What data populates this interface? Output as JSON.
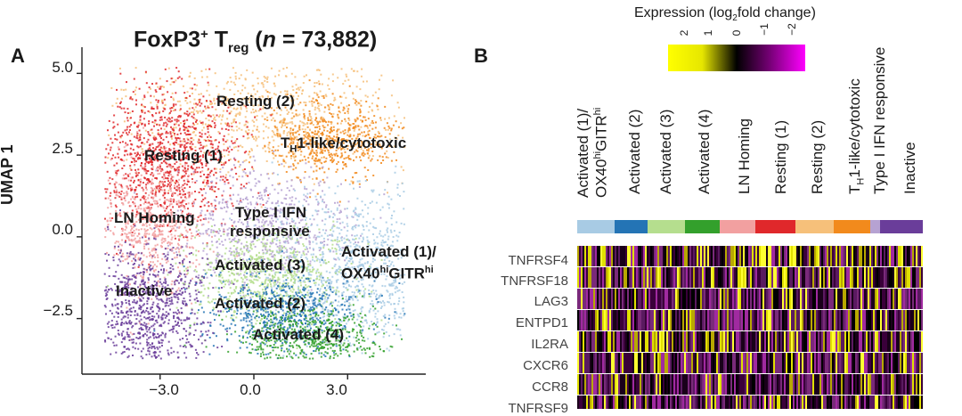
{
  "panel_a": {
    "letter": "A",
    "title_prefix": "FoxP3",
    "title_sup": "+",
    "title_mid": " T",
    "title_sub": "reg",
    "title_n_open": " (",
    "title_n": "n",
    "title_n_rest": " = 73,882)"
  },
  "panel_b": {
    "letter": "B"
  },
  "chart_data": {
    "type": "scatter",
    "title": "FoxP3+ Treg (n = 73,882)",
    "xlabel": "",
    "ylabel": "UMAP 1",
    "x_ticks": [
      "−3.0",
      "0.0",
      "3.0"
    ],
    "y_ticks": [
      "5.0",
      "2.5",
      "0.0",
      "−2.5"
    ],
    "xlim": [
      -5.5,
      5.5
    ],
    "ylim": [
      -4.2,
      5.8
    ],
    "clusters": [
      {
        "name": "Resting (2)",
        "color": "#f6c07a",
        "cx": 0.2,
        "cy": 3.8
      },
      {
        "name": "TH1-like/cytotoxic",
        "color": "#f28a1c",
        "cx": 2.4,
        "cy": 3.0
      },
      {
        "name": "Resting (1)",
        "color": "#e0282b",
        "cx": -2.8,
        "cy": 2.4
      },
      {
        "name": "LN Homing",
        "color": "#f2a0a0",
        "cx": -3.3,
        "cy": 0.4
      },
      {
        "name": "Type I IFN responsive",
        "color": "#b6a2d2",
        "cx": 0.3,
        "cy": 0.3
      },
      {
        "name": "Activated (1)/OX40hiGITRhi",
        "color": "#a8cbe4",
        "cx": 3.4,
        "cy": -1.0
      },
      {
        "name": "Activated (3)",
        "color": "#b5de8e",
        "cx": 0.4,
        "cy": -1.2
      },
      {
        "name": "Activated (2)",
        "color": "#2474b5",
        "cx": 0.8,
        "cy": -2.3
      },
      {
        "name": "Activated (4)",
        "color": "#33a02c",
        "cx": 1.7,
        "cy": -3.1
      },
      {
        "name": "Inactive",
        "color": "#6a3d9a",
        "cx": -3.4,
        "cy": -2.3
      }
    ]
  },
  "labels": {
    "resting2": "Resting (2)",
    "th1_t": "T",
    "th1_sub": "H",
    "th1_rest": "1-like/cytotoxic",
    "resting1": "Resting (1)",
    "ln_homing": "LN Homing",
    "type1_line1": "Type I IFN",
    "type1_line2": "responsive",
    "act1_line1": "Activated (1)/",
    "act1_ox": "OX40",
    "act1_hi1": "hi",
    "act1_gitr": "GITR",
    "act1_hi2": "hi",
    "act3": "Activated (3)",
    "inactive": "Inactive",
    "act2": "Activated (2)",
    "act4": "Activated (4)"
  },
  "legend": {
    "title_pre": "Expression (log",
    "title_sub": "2",
    "title_post": "fold change)",
    "ticks": [
      "2",
      "1",
      "0",
      "−1",
      "−2"
    ]
  },
  "heatmap": {
    "columns": [
      {
        "line1": "Activated (1)/",
        "line2_pre": "OX40",
        "line2_hi1": "hi",
        "line2_mid": "GITR",
        "line2_hi2": "hi",
        "color": "#a8cbe4"
      },
      {
        "line1": "Activated (2)",
        "color": "#2474b5"
      },
      {
        "line1": "Activated (3)",
        "color": "#b5de8e"
      },
      {
        "line1": "Activated (4)",
        "color": "#33a02c"
      },
      {
        "line1": "LN Homing",
        "color": "#f2a0a0"
      },
      {
        "line1": "Resting (1)",
        "color": "#e0282b"
      },
      {
        "line1": "Resting (2)",
        "color": "#f6c07a"
      },
      {
        "line1_t": "T",
        "line1_sub": "H",
        "line1_rest": "1-like/cytotoxic",
        "color": "#f28a1c"
      },
      {
        "line1": "Type I IFN responsive",
        "color": "#b6a2d2"
      },
      {
        "line1": "Inactive",
        "color": "#6a3d9a"
      }
    ],
    "genes": [
      "TNFRSF4",
      "TNFRSF18",
      "LAG3",
      "ENTPD1",
      "IL2RA",
      "CXCR6",
      "CCR8",
      "TNFRSF9"
    ]
  }
}
